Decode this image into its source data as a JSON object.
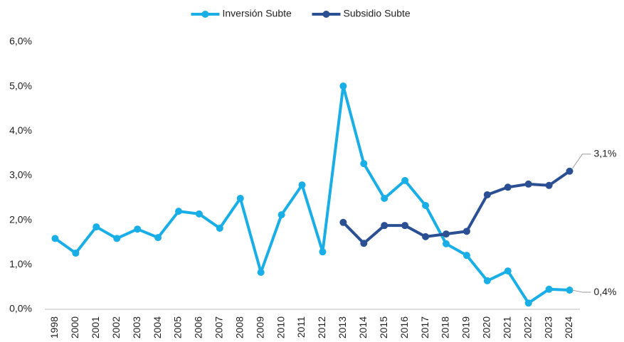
{
  "chart_data": {
    "type": "line",
    "categories": [
      "1998",
      "2000",
      "2001",
      "2002",
      "2003",
      "2004",
      "2005",
      "2006",
      "2007",
      "2008",
      "2009",
      "2010",
      "2011",
      "2012",
      "2013",
      "2014",
      "2015",
      "2016",
      "2017",
      "2018",
      "2019",
      "2020",
      "2021",
      "2022",
      "2023",
      "2024"
    ],
    "series": [
      {
        "name": "Inversión Subte",
        "color": "#19aee6",
        "values": [
          1.59,
          1.26,
          1.85,
          1.59,
          1.8,
          1.61,
          2.2,
          2.14,
          1.82,
          2.49,
          0.83,
          2.12,
          2.79,
          1.29,
          5.01,
          3.27,
          2.49,
          2.89,
          2.33,
          1.47,
          1.21,
          0.64,
          0.86,
          0.14,
          0.45,
          0.43
        ],
        "value_labels": [
          null,
          null,
          null,
          null,
          null,
          null,
          null,
          null,
          null,
          null,
          null,
          null,
          null,
          null,
          null,
          null,
          null,
          null,
          null,
          null,
          null,
          null,
          null,
          null,
          null,
          "0,4%"
        ]
      },
      {
        "name": "Subsidio Subte",
        "color": "#2b4f93",
        "values": [
          null,
          null,
          null,
          null,
          null,
          null,
          null,
          null,
          null,
          null,
          null,
          null,
          null,
          null,
          1.95,
          1.48,
          1.88,
          1.88,
          1.63,
          1.69,
          1.75,
          2.57,
          2.74,
          2.81,
          2.78,
          3.1
        ],
        "value_labels": [
          null,
          null,
          null,
          null,
          null,
          null,
          null,
          null,
          null,
          null,
          null,
          null,
          null,
          null,
          null,
          null,
          null,
          null,
          null,
          null,
          null,
          null,
          null,
          null,
          null,
          "3,1%"
        ]
      }
    ],
    "ylim": [
      0,
      6
    ],
    "yticks": [
      {
        "value": 0,
        "label": "0,0%"
      },
      {
        "value": 1,
        "label": "1,0%"
      },
      {
        "value": 2,
        "label": "2,0%"
      },
      {
        "value": 3,
        "label": "3,0%"
      },
      {
        "value": 4,
        "label": "4,0%"
      },
      {
        "value": 5,
        "label": "5,0%"
      },
      {
        "value": 6,
        "label": "6,0%"
      }
    ],
    "grid": false,
    "legend": "top"
  }
}
